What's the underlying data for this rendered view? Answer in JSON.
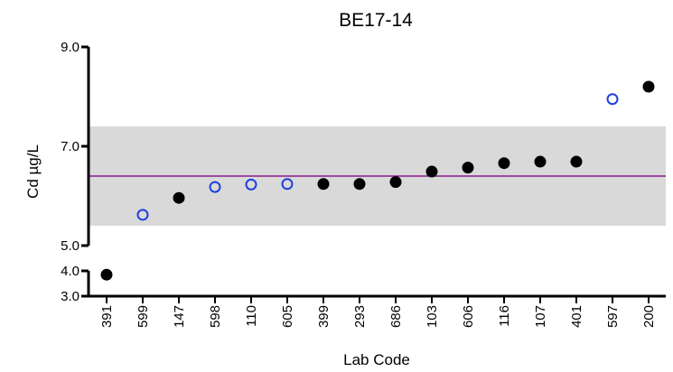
{
  "chart_data": {
    "type": "scatter",
    "title": "BE17-14",
    "xlabel": "Lab Code",
    "ylabel": "Cd µg/L",
    "categories": [
      "391",
      "599",
      "147",
      "598",
      "110",
      "605",
      "399",
      "293",
      "686",
      "103",
      "606",
      "116",
      "107",
      "401",
      "597",
      "200"
    ],
    "values": [
      3.85,
      5.62,
      5.96,
      6.18,
      6.23,
      6.24,
      6.24,
      6.24,
      6.28,
      6.49,
      6.57,
      6.66,
      6.69,
      6.69,
      7.95,
      8.2
    ],
    "marker_style": [
      "filled",
      "open",
      "filled",
      "open",
      "open",
      "open",
      "filled",
      "filled",
      "filled",
      "filled",
      "filled",
      "filled",
      "filled",
      "filled",
      "open",
      "filled"
    ],
    "reference_line": 6.4,
    "tolerance_band": [
      5.4,
      7.4
    ],
    "y_axis_segments": [
      {
        "range": [
          5.0,
          9.0
        ],
        "ticks": [
          "5.0",
          "7.0",
          "9.0"
        ]
      },
      {
        "range": [
          3.0,
          4.0
        ],
        "ticks": [
          "3.0",
          "4.0"
        ]
      }
    ],
    "grid": false,
    "colors": {
      "filled_marker": "#000000",
      "open_marker": "#1f3fe0",
      "reference_line": "#8b1a8b",
      "band": "#d9d9d9",
      "axis": "#000000"
    }
  }
}
